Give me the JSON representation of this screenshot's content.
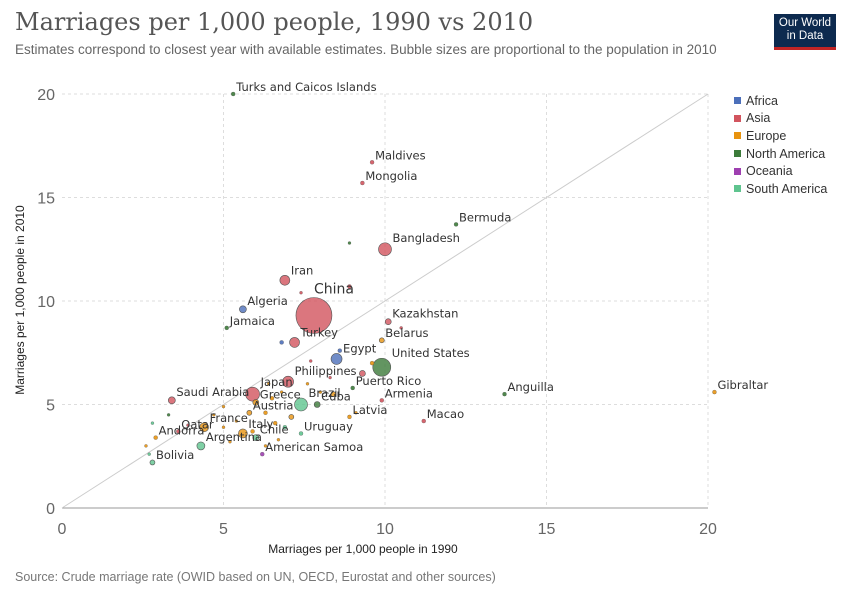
{
  "header": {
    "title": "Marriages per 1,000 people, 1990 vs 2010",
    "subtitle": "Estimates correspond to closest year with available estimates. Bubble sizes are proportional to the population in 2010",
    "logo_line1": "Our World",
    "logo_line2": "in Data"
  },
  "footer": {
    "source": "Source: Crude marriage rate (OWID based on UN, OECD, Eurostat and other sources)"
  },
  "colors": {
    "Africa": "#4c6fba",
    "Asia": "#d2545e",
    "Europe": "#e8930f",
    "North America": "#3c7b3a",
    "Oceania": "#9e3fb0",
    "South America": "#5fc48f"
  },
  "legend": [
    "Africa",
    "Asia",
    "Europe",
    "North America",
    "Oceania",
    "South America"
  ],
  "chart_data": {
    "type": "scatter",
    "xlabel": "Marriages per 1,000 people in 1990",
    "ylabel": "Marriages per 1,000 people in 2010",
    "xlim": [
      0,
      20
    ],
    "ylim": [
      0,
      20
    ],
    "xticks": [
      0,
      5,
      10,
      15,
      20
    ],
    "yticks": [
      0,
      5,
      10,
      15,
      20
    ],
    "grid": true,
    "diagonal_line": true,
    "legend_position": "right",
    "points": [
      {
        "name": "China",
        "x": 7.8,
        "y": 9.3,
        "region": "Asia",
        "r": 18,
        "label": true
      },
      {
        "name": "Turks and Caicos Islands",
        "x": 5.3,
        "y": 20.0,
        "region": "North America",
        "r": 2,
        "label": true
      },
      {
        "name": "Maldives",
        "x": 9.6,
        "y": 16.7,
        "region": "Asia",
        "r": 2,
        "label": true
      },
      {
        "name": "Mongolia",
        "x": 9.3,
        "y": 15.7,
        "region": "Asia",
        "r": 2,
        "label": true
      },
      {
        "name": "Bermuda",
        "x": 12.2,
        "y": 13.7,
        "region": "North America",
        "r": 2,
        "label": true
      },
      {
        "name": "Bangladesh",
        "x": 10.0,
        "y": 12.5,
        "region": "Asia",
        "r": 6.5,
        "label": true
      },
      {
        "name": "Iran",
        "x": 6.9,
        "y": 11.0,
        "region": "Asia",
        "r": 5,
        "label": true
      },
      {
        "name": "Algeria",
        "x": 5.6,
        "y": 9.6,
        "region": "Africa",
        "r": 3.5,
        "label": true
      },
      {
        "name": "Jamaica",
        "x": 5.1,
        "y": 8.7,
        "region": "North America",
        "r": 2,
        "label": true
      },
      {
        "name": "Turkey",
        "x": 7.2,
        "y": 8.0,
        "region": "Asia",
        "r": 5,
        "label": true
      },
      {
        "name": "Kazakhstan",
        "x": 10.1,
        "y": 9.0,
        "region": "Asia",
        "r": 3,
        "label": true
      },
      {
        "name": "Belarus",
        "x": 9.9,
        "y": 8.1,
        "region": "Europe",
        "r": 2.5,
        "label": true
      },
      {
        "name": "Egypt",
        "x": 8.5,
        "y": 7.2,
        "region": "Africa",
        "r": 5.5,
        "label": true
      },
      {
        "name": "United States",
        "x": 9.9,
        "y": 6.8,
        "region": "North America",
        "r": 9,
        "label": true
      },
      {
        "name": "Philippines",
        "x": 7.0,
        "y": 6.1,
        "region": "Asia",
        "r": 5.5,
        "label": true
      },
      {
        "name": "Puerto Rico",
        "x": 9.0,
        "y": 5.8,
        "region": "North America",
        "r": 2,
        "label": true
      },
      {
        "name": "Armenia",
        "x": 9.9,
        "y": 5.2,
        "region": "Asia",
        "r": 2,
        "label": true
      },
      {
        "name": "Anguilla",
        "x": 13.7,
        "y": 5.5,
        "region": "North America",
        "r": 2,
        "label": true
      },
      {
        "name": "Gibraltar",
        "x": 20.2,
        "y": 5.6,
        "region": "Europe",
        "r": 2,
        "label": true
      },
      {
        "name": "Macao",
        "x": 11.2,
        "y": 4.2,
        "region": "Asia",
        "r": 2,
        "label": true
      },
      {
        "name": "Latvia",
        "x": 8.9,
        "y": 4.4,
        "region": "Europe",
        "r": 2,
        "label": true
      },
      {
        "name": "Japan",
        "x": 5.9,
        "y": 5.5,
        "region": "Asia",
        "r": 7,
        "label": true
      },
      {
        "name": "Saudi Arabia",
        "x": 3.4,
        "y": 5.2,
        "region": "Asia",
        "r": 3.5,
        "label": true
      },
      {
        "name": "Greece",
        "x": 6.0,
        "y": 5.1,
        "region": "Europe",
        "r": 3,
        "label": true
      },
      {
        "name": "Brazil",
        "x": 7.4,
        "y": 5.0,
        "region": "South America",
        "r": 6.5,
        "label": true
      },
      {
        "name": "Cuba",
        "x": 7.9,
        "y": 5.0,
        "region": "North America",
        "r": 3,
        "label": true
      },
      {
        "name": "Austria",
        "x": 5.8,
        "y": 4.6,
        "region": "Europe",
        "r": 2.5,
        "label": true
      },
      {
        "name": "France",
        "x": 4.4,
        "y": 3.9,
        "region": "Europe",
        "r": 4.5,
        "label": true
      },
      {
        "name": "Qatar",
        "x": 3.6,
        "y": 3.7,
        "region": "Asia",
        "r": 2,
        "label": true
      },
      {
        "name": "Italy",
        "x": 5.6,
        "y": 3.6,
        "region": "Europe",
        "r": 4.5,
        "label": true
      },
      {
        "name": "Chile",
        "x": 6.0,
        "y": 3.4,
        "region": "South America",
        "r": 3,
        "label": true
      },
      {
        "name": "Uruguay",
        "x": 7.4,
        "y": 3.6,
        "region": "South America",
        "r": 2,
        "label": true
      },
      {
        "name": "Andorra",
        "x": 2.9,
        "y": 3.4,
        "region": "Europe",
        "r": 2,
        "label": true
      },
      {
        "name": "Argentina",
        "x": 4.3,
        "y": 3.0,
        "region": "South America",
        "r": 4,
        "label": true
      },
      {
        "name": "American Samoa",
        "x": 6.2,
        "y": 2.6,
        "region": "Oceania",
        "r": 2,
        "label": true
      },
      {
        "name": "Bolivia",
        "x": 2.8,
        "y": 2.2,
        "region": "South America",
        "r": 2.5,
        "label": true
      },
      {
        "name": "",
        "x": 8.9,
        "y": 12.8,
        "region": "North America",
        "r": 1.5,
        "label": false
      },
      {
        "name": "",
        "x": 8.9,
        "y": 10.7,
        "region": "Asia",
        "r": 2,
        "label": false
      },
      {
        "name": "",
        "x": 7.4,
        "y": 10.4,
        "region": "Asia",
        "r": 1.5,
        "label": false
      },
      {
        "name": "",
        "x": 10.5,
        "y": 8.7,
        "region": "Asia",
        "r": 1.5,
        "label": false
      },
      {
        "name": "",
        "x": 6.8,
        "y": 8.0,
        "region": "Africa",
        "r": 2,
        "label": false
      },
      {
        "name": "",
        "x": 8.6,
        "y": 7.6,
        "region": "Africa",
        "r": 2,
        "label": false
      },
      {
        "name": "",
        "x": 9.6,
        "y": 7.0,
        "region": "Europe",
        "r": 2,
        "label": false
      },
      {
        "name": "",
        "x": 9.3,
        "y": 6.5,
        "region": "Asia",
        "r": 3,
        "label": false
      },
      {
        "name": "",
        "x": 8.3,
        "y": 6.3,
        "region": "Asia",
        "r": 1.5,
        "label": false
      },
      {
        "name": "",
        "x": 7.6,
        "y": 6.0,
        "region": "Europe",
        "r": 1.5,
        "label": false
      },
      {
        "name": "",
        "x": 8.4,
        "y": 5.5,
        "region": "Europe",
        "r": 2.5,
        "label": false
      },
      {
        "name": "",
        "x": 6.4,
        "y": 6.0,
        "region": "Europe",
        "r": 1.5,
        "label": false
      },
      {
        "name": "",
        "x": 6.5,
        "y": 5.3,
        "region": "Europe",
        "r": 2,
        "label": false
      },
      {
        "name": "",
        "x": 6.8,
        "y": 5.6,
        "region": "Europe",
        "r": 1.5,
        "label": false
      },
      {
        "name": "",
        "x": 5.0,
        "y": 4.9,
        "region": "Europe",
        "r": 1.5,
        "label": false
      },
      {
        "name": "",
        "x": 4.7,
        "y": 4.5,
        "region": "Europe",
        "r": 1.5,
        "label": false
      },
      {
        "name": "",
        "x": 5.4,
        "y": 4.2,
        "region": "Europe",
        "r": 1.5,
        "label": false
      },
      {
        "name": "",
        "x": 6.6,
        "y": 4.1,
        "region": "Europe",
        "r": 2,
        "label": false
      },
      {
        "name": "",
        "x": 6.3,
        "y": 4.6,
        "region": "Europe",
        "r": 2,
        "label": false
      },
      {
        "name": "",
        "x": 7.1,
        "y": 4.4,
        "region": "Europe",
        "r": 2.5,
        "label": false
      },
      {
        "name": "",
        "x": 6.9,
        "y": 3.9,
        "region": "South America",
        "r": 2,
        "label": false
      },
      {
        "name": "",
        "x": 5.9,
        "y": 3.7,
        "region": "Europe",
        "r": 2,
        "label": false
      },
      {
        "name": "",
        "x": 6.7,
        "y": 3.3,
        "region": "Europe",
        "r": 1.5,
        "label": false
      },
      {
        "name": "",
        "x": 6.3,
        "y": 3.0,
        "region": "Europe",
        "r": 1.5,
        "label": false
      },
      {
        "name": "",
        "x": 5.2,
        "y": 3.2,
        "region": "Europe",
        "r": 1.5,
        "label": false
      },
      {
        "name": "",
        "x": 3.3,
        "y": 4.5,
        "region": "North America",
        "r": 1.5,
        "label": false
      },
      {
        "name": "",
        "x": 2.8,
        "y": 4.1,
        "region": "South America",
        "r": 1.5,
        "label": false
      },
      {
        "name": "",
        "x": 2.6,
        "y": 3.0,
        "region": "Europe",
        "r": 1.5,
        "label": false
      },
      {
        "name": "",
        "x": 2.7,
        "y": 2.6,
        "region": "South America",
        "r": 1.5,
        "label": false
      },
      {
        "name": "",
        "x": 5.0,
        "y": 3.9,
        "region": "Europe",
        "r": 1.5,
        "label": false
      },
      {
        "name": "",
        "x": 3.9,
        "y": 4.0,
        "region": "Asia",
        "r": 1.5,
        "label": false
      },
      {
        "name": "",
        "x": 8.0,
        "y": 5.6,
        "region": "Europe",
        "r": 1.5,
        "label": false
      },
      {
        "name": "",
        "x": 9.1,
        "y": 4.6,
        "region": "Europe",
        "r": 1.5,
        "label": false
      },
      {
        "name": "",
        "x": 7.7,
        "y": 7.1,
        "region": "Asia",
        "r": 1.5,
        "label": false
      }
    ]
  }
}
